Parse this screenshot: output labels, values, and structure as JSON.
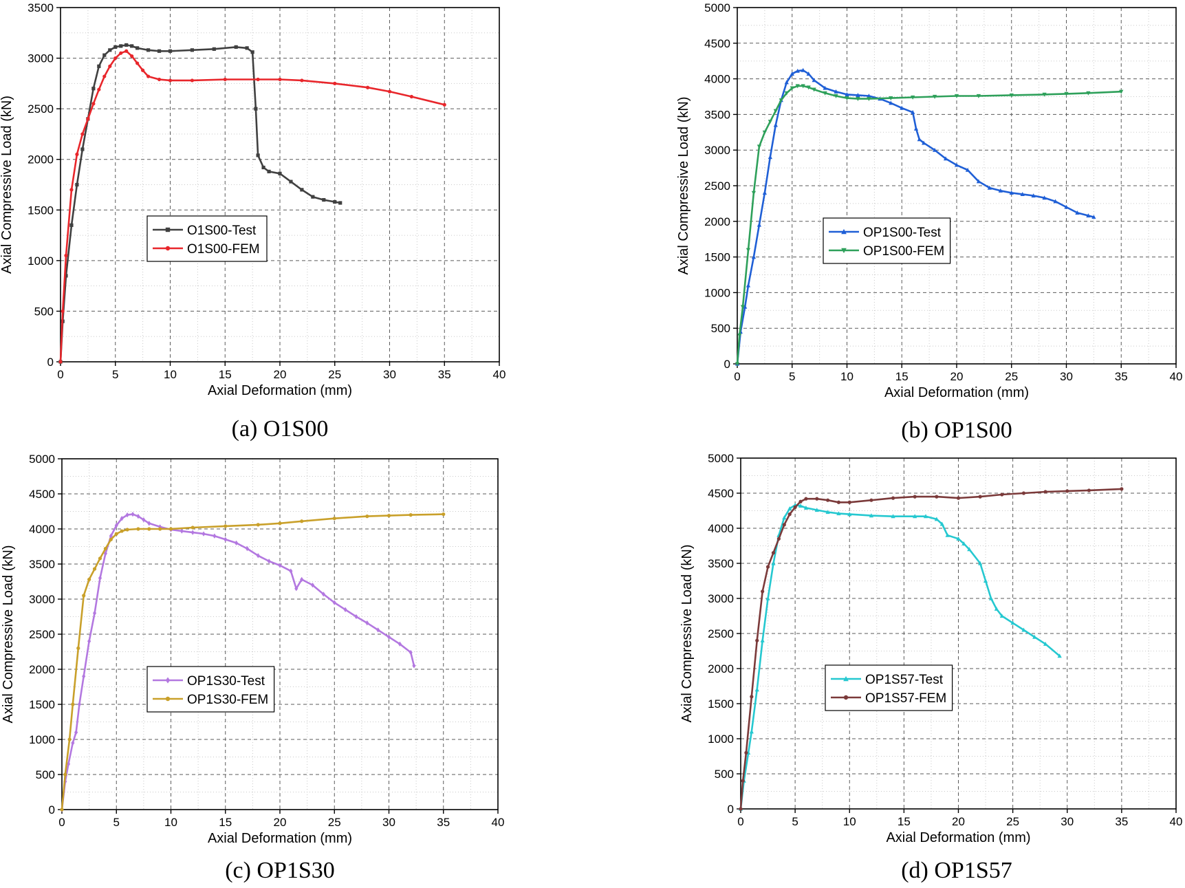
{
  "chart_data": [
    {
      "type": "line",
      "caption": "(a) O1S00",
      "xlabel": "Axial Deformation (mm)",
      "ylabel": "Axial Compressive Load (kN)",
      "xlim": [
        0,
        40
      ],
      "ylim": [
        0,
        3500
      ],
      "xticks": [
        0,
        5,
        10,
        15,
        20,
        25,
        30,
        35,
        40
      ],
      "yticks": [
        0,
        500,
        1000,
        1500,
        2000,
        2500,
        3000,
        3500
      ],
      "grid": true,
      "legend_position": "center-left",
      "series": [
        {
          "name": "O1S00-Test",
          "color": "#404040",
          "marker": "square",
          "x": [
            0,
            0.2,
            0.5,
            1,
            1.5,
            2,
            2.5,
            3,
            3.5,
            4,
            4.5,
            5,
            5.5,
            6,
            6.5,
            7,
            8,
            9,
            10,
            12,
            14,
            16,
            17,
            17.5,
            17.8,
            18,
            18.5,
            19,
            20,
            21,
            22,
            23,
            24,
            25,
            25.5
          ],
          "y": [
            0,
            400,
            850,
            1350,
            1750,
            2100,
            2400,
            2700,
            2920,
            3030,
            3080,
            3110,
            3120,
            3130,
            3120,
            3100,
            3080,
            3070,
            3070,
            3080,
            3090,
            3110,
            3100,
            3060,
            2500,
            2040,
            1920,
            1880,
            1860,
            1780,
            1700,
            1630,
            1600,
            1580,
            1570
          ]
        },
        {
          "name": "O1S00-FEM",
          "color": "#e8262b",
          "marker": "dot",
          "x": [
            0,
            0.2,
            0.5,
            1,
            1.5,
            2,
            2.5,
            3,
            3.5,
            4,
            4.5,
            5,
            5.5,
            6,
            6.5,
            7,
            7.5,
            8,
            9,
            10,
            12,
            15,
            18,
            20,
            22,
            25,
            28,
            30,
            32,
            35
          ],
          "y": [
            0,
            500,
            1050,
            1700,
            2050,
            2250,
            2400,
            2550,
            2690,
            2820,
            2920,
            3000,
            3050,
            3070,
            3020,
            2950,
            2880,
            2820,
            2790,
            2780,
            2780,
            2790,
            2790,
            2790,
            2780,
            2750,
            2710,
            2670,
            2620,
            2540
          ]
        }
      ]
    },
    {
      "type": "line",
      "caption": "(b) OP1S00",
      "xlabel": "Axial Deformation (mm)",
      "ylabel": "Axial Compressive Load (kN)",
      "xlim": [
        0,
        40
      ],
      "ylim": [
        0,
        5000
      ],
      "xticks": [
        0,
        5,
        10,
        15,
        20,
        25,
        30,
        35,
        40
      ],
      "yticks": [
        0,
        500,
        1000,
        1500,
        2000,
        2500,
        3000,
        3500,
        4000,
        4500,
        5000
      ],
      "grid": true,
      "legend_position": "center-left",
      "series": [
        {
          "name": "OP1S00-Test",
          "color": "#1f5fd6",
          "marker": "triangle-up",
          "x": [
            0,
            0.3,
            0.7,
            1,
            1.5,
            2,
            2.5,
            3,
            3.5,
            4,
            4.5,
            5,
            5.5,
            6,
            6.5,
            7,
            8,
            9,
            10,
            11,
            12,
            13,
            14,
            15,
            16,
            16.3,
            16.6,
            17,
            18,
            19,
            20,
            21,
            22,
            23,
            24,
            25,
            26,
            27,
            28,
            29,
            30,
            31,
            32,
            32.5
          ],
          "y": [
            0,
            450,
            800,
            1100,
            1500,
            1950,
            2400,
            2900,
            3350,
            3700,
            3950,
            4070,
            4110,
            4120,
            4070,
            3980,
            3870,
            3820,
            3780,
            3770,
            3760,
            3720,
            3660,
            3590,
            3530,
            3300,
            3150,
            3100,
            3000,
            2880,
            2790,
            2720,
            2560,
            2470,
            2430,
            2400,
            2380,
            2360,
            2330,
            2280,
            2200,
            2120,
            2080,
            2060
          ]
        },
        {
          "name": "OP1S00-FEM",
          "color": "#2ea05a",
          "marker": "triangle-down",
          "x": [
            0,
            0.2,
            0.5,
            1,
            1.5,
            2,
            2.5,
            3,
            3.5,
            4,
            4.5,
            5,
            5.5,
            6,
            6.5,
            7,
            8,
            9,
            10,
            11,
            12,
            14,
            16,
            18,
            20,
            22,
            25,
            28,
            30,
            32,
            35
          ],
          "y": [
            0,
            400,
            800,
            1600,
            2400,
            3050,
            3250,
            3400,
            3550,
            3700,
            3800,
            3870,
            3900,
            3900,
            3880,
            3850,
            3800,
            3760,
            3730,
            3720,
            3720,
            3730,
            3740,
            3750,
            3760,
            3760,
            3770,
            3780,
            3790,
            3800,
            3820
          ]
        }
      ]
    },
    {
      "type": "line",
      "caption": "(c) OP1S30",
      "xlabel": "Axial Deformation (mm)",
      "ylabel": "Axial Compressive Load (kN)",
      "xlim": [
        0,
        40
      ],
      "ylim": [
        0,
        5000
      ],
      "xticks": [
        0,
        5,
        10,
        15,
        20,
        25,
        30,
        35,
        40
      ],
      "yticks": [
        0,
        500,
        1000,
        1500,
        2000,
        2500,
        3000,
        3500,
        4000,
        4500,
        5000
      ],
      "grid": true,
      "legend_position": "center-left",
      "series": [
        {
          "name": "OP1S30-Test",
          "color": "#b378e0",
          "marker": "diamond",
          "x": [
            0,
            0.3,
            0.6,
            1,
            1.3,
            1.6,
            2,
            2.5,
            3,
            3.5,
            4,
            4.5,
            5,
            5.5,
            6,
            6.5,
            7,
            7.5,
            8,
            9,
            10,
            11,
            12,
            13,
            14,
            15,
            16,
            17,
            18,
            19,
            20,
            21,
            21.5,
            22,
            23,
            24,
            25,
            26,
            27,
            28,
            29,
            30,
            31,
            32,
            32.3
          ],
          "y": [
            0,
            400,
            650,
            950,
            1100,
            1500,
            1900,
            2400,
            2800,
            3300,
            3650,
            3900,
            4050,
            4150,
            4200,
            4210,
            4180,
            4130,
            4080,
            4030,
            3990,
            3970,
            3950,
            3930,
            3900,
            3850,
            3800,
            3720,
            3620,
            3540,
            3480,
            3400,
            3150,
            3280,
            3200,
            3070,
            2950,
            2850,
            2750,
            2660,
            2560,
            2460,
            2360,
            2240,
            2050
          ]
        },
        {
          "name": "OP1S30-FEM",
          "color": "#c9a02a",
          "marker": "dot",
          "x": [
            0,
            0.3,
            0.7,
            1,
            1.5,
            2,
            2.5,
            3,
            3.5,
            4,
            4.5,
            5,
            5.5,
            6,
            7,
            8,
            9,
            10,
            12,
            15,
            18,
            20,
            22,
            25,
            28,
            30,
            32,
            35
          ],
          "y": [
            0,
            500,
            1000,
            1500,
            2300,
            3050,
            3280,
            3430,
            3580,
            3720,
            3850,
            3930,
            3970,
            3990,
            4000,
            4000,
            4000,
            4000,
            4020,
            4040,
            4060,
            4080,
            4110,
            4150,
            4180,
            4190,
            4200,
            4210
          ]
        }
      ]
    },
    {
      "type": "line",
      "caption": "(d) OP1S57",
      "xlabel": "Axial Deformation (mm)",
      "ylabel": "Axial Compressive Load (kN)",
      "xlim": [
        0,
        40
      ],
      "ylim": [
        0,
        5000
      ],
      "xticks": [
        0,
        5,
        10,
        15,
        20,
        25,
        30,
        35,
        40
      ],
      "yticks": [
        0,
        500,
        1000,
        1500,
        2000,
        2500,
        3000,
        3500,
        4000,
        4500,
        5000
      ],
      "grid": true,
      "legend_position": "center-left",
      "series": [
        {
          "name": "OP1S57-Test",
          "color": "#25c8d0",
          "marker": "triangle-up",
          "x": [
            0,
            0.3,
            0.7,
            1,
            1.5,
            2,
            2.5,
            3,
            3.5,
            4,
            4.5,
            5,
            5.5,
            6,
            7,
            8,
            9,
            10,
            12,
            14,
            16,
            17,
            18,
            18.5,
            19,
            20,
            20.5,
            21,
            22,
            22.5,
            23,
            23.5,
            24,
            25,
            26,
            27,
            28,
            29.3
          ],
          "y": [
            0,
            400,
            800,
            1100,
            1700,
            2400,
            3000,
            3500,
            3900,
            4150,
            4280,
            4330,
            4320,
            4290,
            4260,
            4230,
            4210,
            4200,
            4180,
            4170,
            4170,
            4170,
            4130,
            4060,
            3900,
            3850,
            3780,
            3700,
            3500,
            3250,
            3000,
            2850,
            2750,
            2650,
            2550,
            2450,
            2350,
            2180
          ]
        },
        {
          "name": "OP1S57-FEM",
          "color": "#7b3a3a",
          "marker": "dot",
          "x": [
            0,
            0.2,
            0.5,
            1,
            1.5,
            2,
            2.5,
            3,
            3.5,
            4,
            4.5,
            5,
            5.5,
            6,
            7,
            8,
            9,
            10,
            12,
            14,
            16,
            18,
            20,
            22,
            24,
            26,
            28,
            30,
            32,
            35
          ],
          "y": [
            0,
            400,
            800,
            1600,
            2400,
            3100,
            3450,
            3650,
            3850,
            4050,
            4200,
            4300,
            4380,
            4420,
            4420,
            4400,
            4370,
            4370,
            4400,
            4430,
            4450,
            4450,
            4430,
            4450,
            4480,
            4500,
            4520,
            4530,
            4540,
            4560
          ]
        }
      ]
    }
  ]
}
